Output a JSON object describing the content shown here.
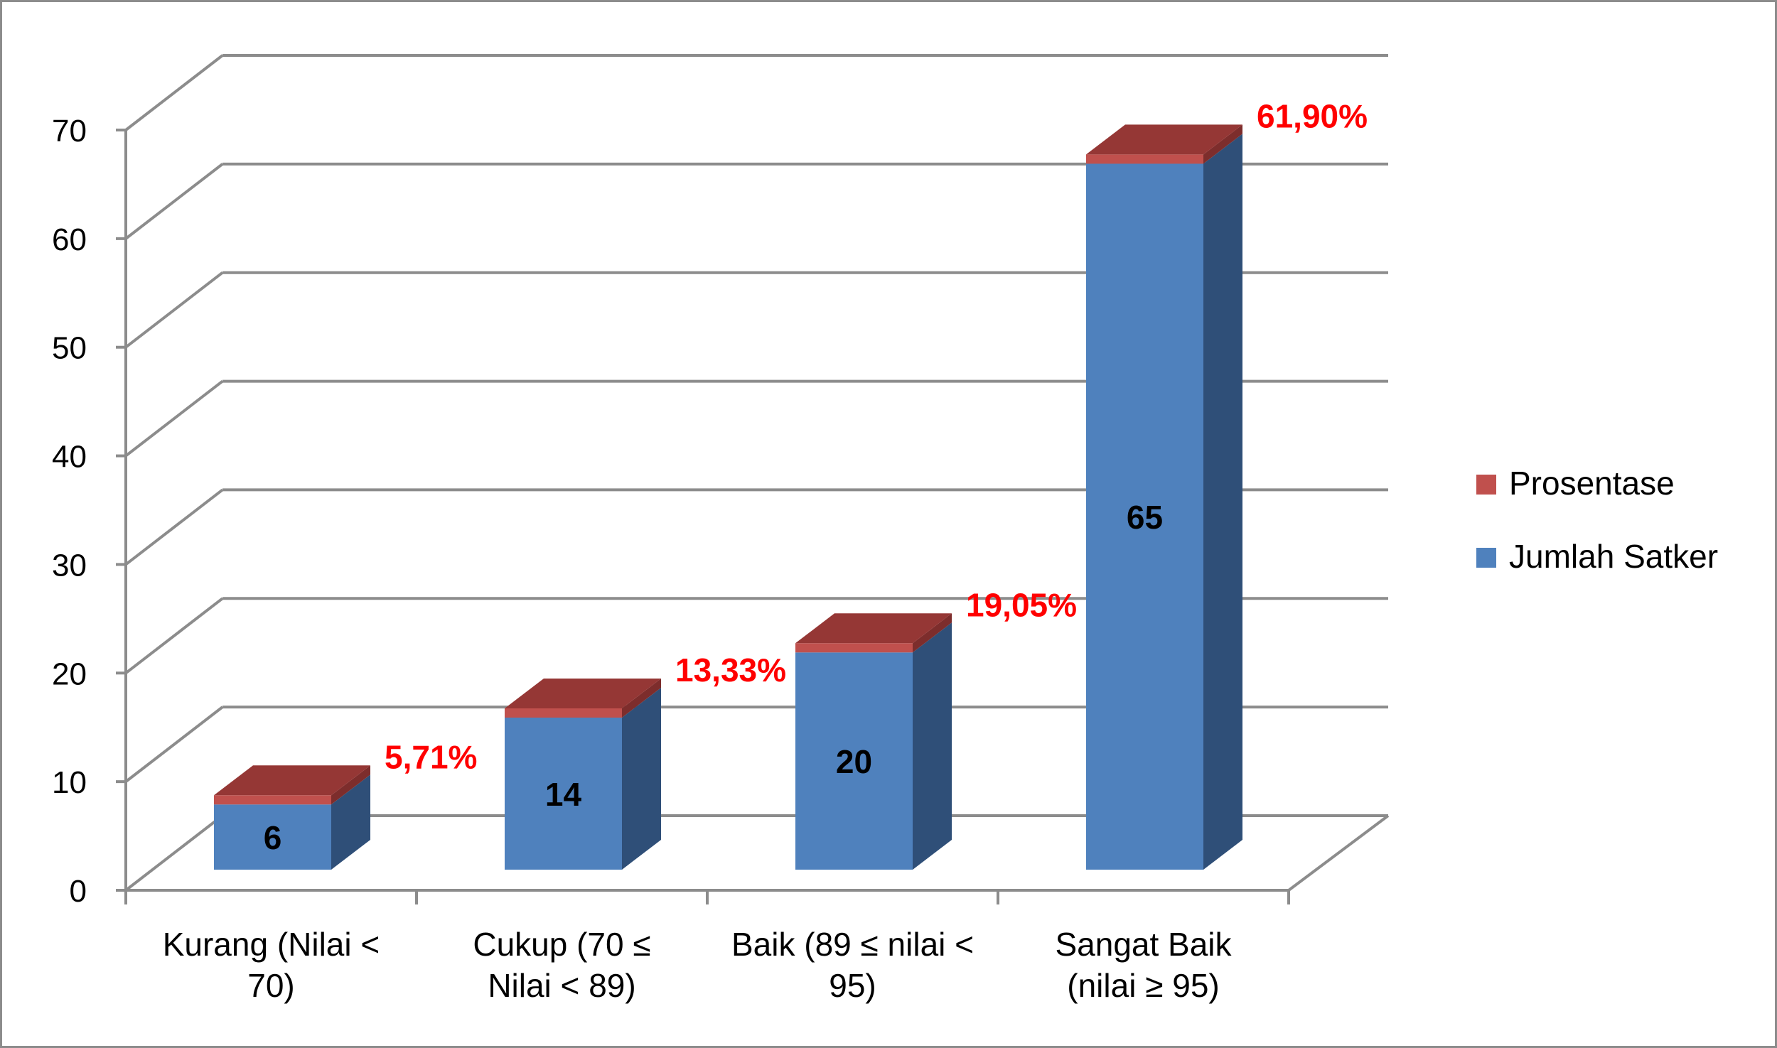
{
  "chart_data": {
    "type": "bar",
    "stacked": true,
    "three_d": true,
    "categories": [
      [
        "Kurang (Nilai <",
        "70)"
      ],
      [
        "Cukup (70 ≤",
        "Nilai < 89)"
      ],
      [
        "Baik (89 ≤ nilai <",
        "95)"
      ],
      [
        "Sangat Baik",
        "(nilai ≥ 95)"
      ]
    ],
    "series": [
      {
        "name": "Jumlah Satker",
        "values": [
          6,
          14,
          20,
          65
        ],
        "labels": [
          "6",
          "14",
          "20",
          "65"
        ],
        "color": "#4f81bd",
        "side_color": "#2f4f78",
        "top_color": "#3b6396"
      },
      {
        "name": "Prosentase",
        "values": [
          0.0571,
          0.1333,
          0.1905,
          0.619
        ],
        "labels": [
          "5,71%",
          "13,33%",
          "19,05%",
          "61,90%"
        ],
        "color": "#c0504d",
        "side_color": "#7d2d2c",
        "top_color": "#953735",
        "label_color": "#ff0000"
      }
    ],
    "ylim": [
      0,
      70
    ],
    "yticks": [
      0,
      10,
      20,
      30,
      40,
      50,
      60,
      70
    ],
    "grid": true,
    "legend_position": "right",
    "legend": [
      {
        "name": "Prosentase",
        "color": "#c0504d"
      },
      {
        "name": "Jumlah Satker",
        "color": "#4f81bd"
      }
    ],
    "gridline_color": "#8c8c8c"
  }
}
